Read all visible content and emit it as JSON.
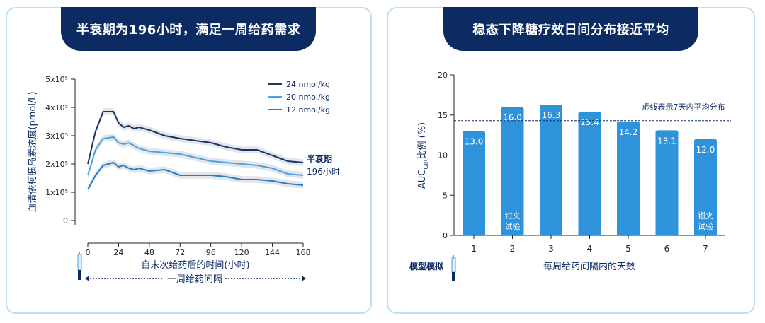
{
  "left_panel": {
    "title": "半衰期为196小时，满足一周给药需求"
  },
  "right_panel": {
    "title": "稳态下降糖疗效日间分布接近平均"
  },
  "colors": {
    "navy": "#0d2b63",
    "series_dark": "#1c3466",
    "series_light": "#4aa3e0",
    "series_mid": "#2a7cc7",
    "band": "#cfd3da",
    "bar": "#2f93dc",
    "border": "#b9e2f4"
  },
  "chart_data": [
    {
      "type": "line",
      "ylabel": "血清依柯胰岛素浓度(pmol/L)",
      "xlabel": "自末次给药后的时间(小时)",
      "xlim": [
        0,
        168
      ],
      "ylim": [
        0,
        5
      ],
      "x_ticks": [
        "0",
        "24",
        "48",
        "72",
        "96",
        "120",
        "144",
        "168"
      ],
      "y_tick_values": [
        0,
        1,
        2,
        3,
        4,
        5
      ],
      "y_tick_labels": [
        "0",
        "1x10⁵",
        "2x10⁵",
        "3x10⁵",
        "4x10⁵",
        "5x10⁵"
      ],
      "series": [
        {
          "name": "24 nmol/kg",
          "color": "#1c3466",
          "x": [
            0,
            6,
            12,
            20,
            24,
            28,
            32,
            36,
            40,
            48,
            60,
            72,
            96,
            108,
            120,
            132,
            144,
            150,
            156,
            168
          ],
          "y": [
            2.0,
            3.15,
            3.85,
            3.85,
            3.45,
            3.3,
            3.35,
            3.25,
            3.3,
            3.2,
            3.0,
            2.9,
            2.75,
            2.6,
            2.5,
            2.5,
            2.3,
            2.2,
            2.1,
            2.05
          ]
        },
        {
          "name": "20 nmol/kg",
          "color": "#4aa3e0",
          "x": [
            0,
            6,
            12,
            20,
            24,
            28,
            32,
            36,
            40,
            48,
            60,
            72,
            96,
            108,
            120,
            132,
            144,
            150,
            156,
            168
          ],
          "y": [
            1.6,
            2.5,
            2.9,
            2.95,
            2.75,
            2.7,
            2.75,
            2.65,
            2.55,
            2.45,
            2.4,
            2.35,
            2.1,
            2.05,
            2.0,
            1.95,
            1.85,
            1.75,
            1.65,
            1.6
          ]
        },
        {
          "name": "12 nmol/kg",
          "color": "#2a7cc7",
          "x": [
            0,
            6,
            12,
            20,
            24,
            28,
            32,
            36,
            40,
            48,
            60,
            72,
            96,
            108,
            120,
            132,
            144,
            150,
            156,
            168
          ],
          "y": [
            1.1,
            1.6,
            1.95,
            2.05,
            1.9,
            1.95,
            1.85,
            1.8,
            1.85,
            1.75,
            1.8,
            1.6,
            1.6,
            1.55,
            1.45,
            1.45,
            1.4,
            1.35,
            1.3,
            1.25
          ]
        }
      ],
      "annotation_line1": "半衰期",
      "annotation_line2": "196小时",
      "dosing_interval_label": "一周给药间隔"
    },
    {
      "type": "bar",
      "categories": [
        "1",
        "2",
        "3",
        "4",
        "5",
        "6",
        "7"
      ],
      "values": [
        13.0,
        16.0,
        16.3,
        15.4,
        14.2,
        13.1,
        12.0
      ],
      "value_labels": [
        "13.0",
        "16.0",
        "16.3",
        "15.4",
        "14.2",
        "13.1",
        "12.0"
      ],
      "ylabel_main": "AUC",
      "ylabel_sub": "GIR",
      "ylabel_tail": "比例 (%)",
      "xlabel": "每周给药间隔内的天数",
      "ylim": [
        0,
        20
      ],
      "y_ticks": [
        0,
        5,
        10,
        15,
        20
      ],
      "reference_value": 14.3,
      "reference_label": "虚线表示7天内平均分布",
      "clamp_bars": [
        {
          "category": "2",
          "line1": "钳夹",
          "line2": "试验"
        },
        {
          "category": "7",
          "line1": "钳夹",
          "line2": "试验"
        }
      ],
      "model_label": "模型模拟"
    }
  ]
}
